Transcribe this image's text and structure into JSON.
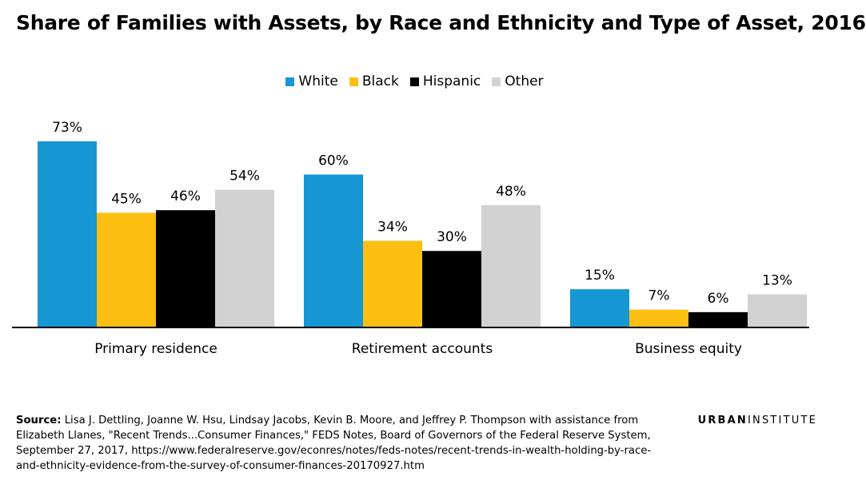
{
  "header": {
    "title": "Share of Families with Assets, by Race and Ethnicity and Type of Asset, 2016"
  },
  "chart_data": {
    "type": "bar",
    "title": "Share of Families with Assets, by Race and Ethnicity and Type of Asset, 2016",
    "xlabel": "",
    "ylabel": "",
    "categories": [
      "Primary residence",
      "Retirement accounts",
      "Business equity"
    ],
    "series": [
      {
        "name": "White",
        "color": "#1696d2",
        "values": [
          73,
          60,
          15
        ],
        "labels": [
          "73%",
          "60%",
          "15%"
        ]
      },
      {
        "name": "Black",
        "color": "#fdbf11",
        "values": [
          45,
          34,
          7
        ],
        "labels": [
          "45%",
          "34%",
          "7%"
        ]
      },
      {
        "name": "Hispanic",
        "color": "#000000",
        "values": [
          46,
          30,
          6
        ],
        "labels": [
          "46%",
          "30%",
          "6%"
        ]
      },
      {
        "name": "Other",
        "color": "#d2d2d2",
        "values": [
          54,
          48,
          13
        ],
        "labels": [
          "54%",
          "48%",
          "13%"
        ]
      }
    ],
    "ylim": [
      0,
      73
    ],
    "grid": false,
    "legend_position": "top-center",
    "axis_color": "#000000"
  },
  "footer": {
    "source_label": "Source:",
    "source_text": "Lisa J. Dettling, Joanne W. Hsu, Lindsay Jacobs, Kevin B. Moore, and Jeffrey P. Thompson with assistance from Elizabeth Llanes, \"Recent Trends...Consumer Finances,\" FEDS Notes, Board of Governors of the Federal Reserve System, September 27, 2017, https://www.federalreserve.gov/econres/notes/feds-notes/recent-trends-in-wealth-holding-by-race-and-ethnicity-evidence-from-the-survey-of-consumer-finances-20170927.htm"
  },
  "brand": {
    "part1": "URBAN",
    "part2": "INSTITUTE"
  }
}
